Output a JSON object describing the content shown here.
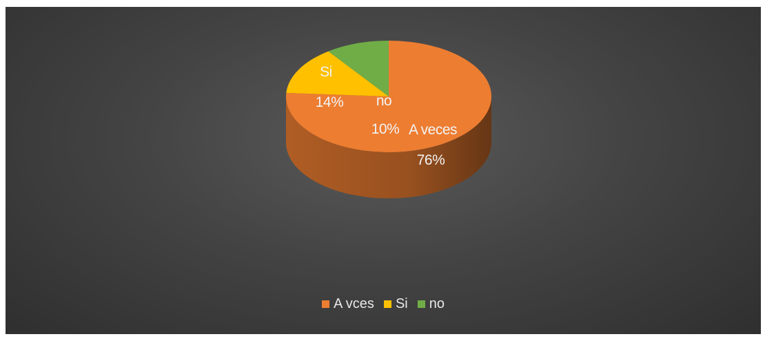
{
  "chart_data": {
    "type": "pie",
    "style": "3d",
    "title": "",
    "slices": [
      {
        "label": "A veces",
        "value": 76,
        "value_label": "76%",
        "color": "#ed7d31"
      },
      {
        "label": "Si",
        "value": 14,
        "value_label": "14%",
        "color": "#ffc000"
      },
      {
        "label": "no",
        "value": 10,
        "value_label": "10%",
        "color": "#70ad47"
      }
    ],
    "legend": {
      "position": "bottom",
      "entries": [
        {
          "label": "A vces",
          "color": "#ed7d31"
        },
        {
          "label": "Si",
          "color": "#ffc000"
        },
        {
          "label": "no",
          "color": "#70ad47"
        }
      ]
    },
    "background_color": "#404040"
  }
}
